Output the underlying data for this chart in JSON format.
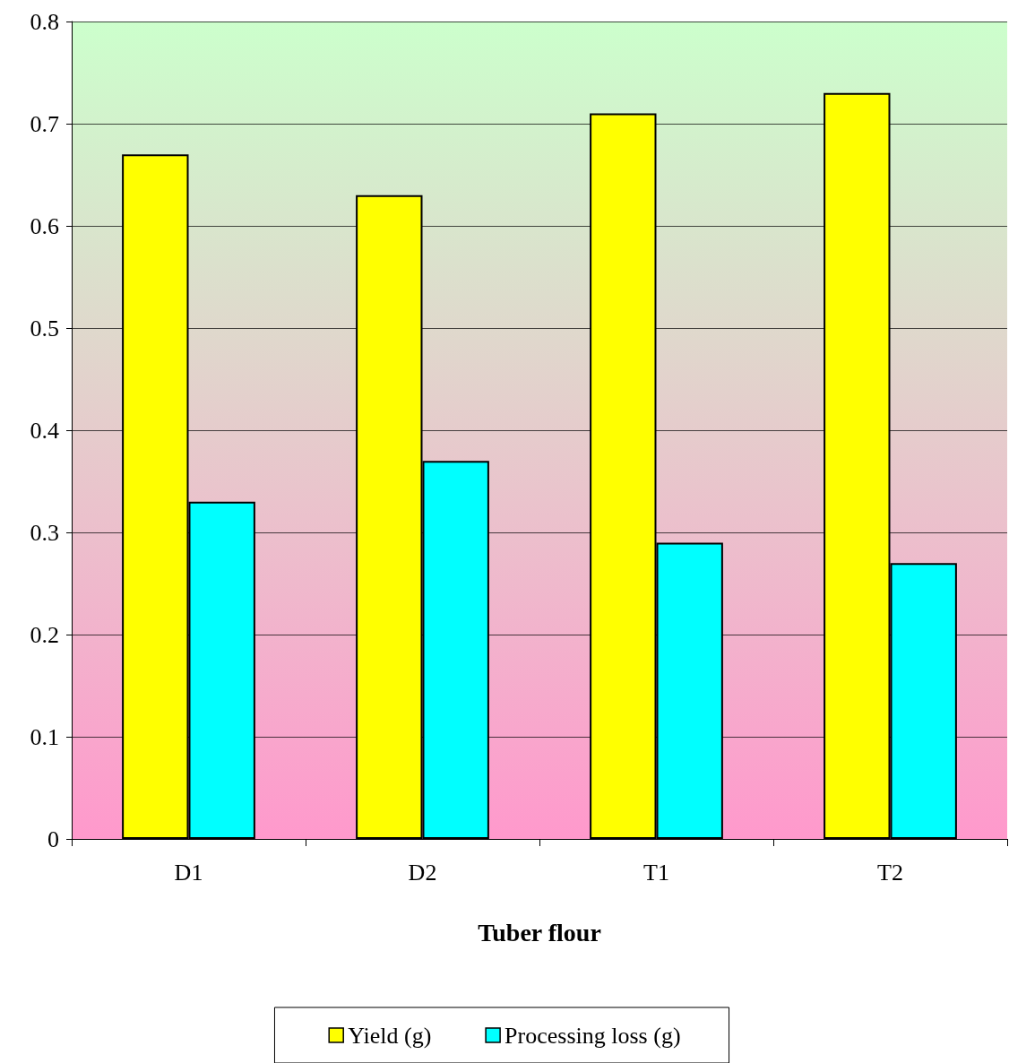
{
  "chart_data": {
    "type": "bar",
    "xlabel": "Tuber flour",
    "categories": [
      "D1",
      "D2",
      "T1",
      "T2"
    ],
    "series": [
      {
        "name": "Yield (g)",
        "color": "#ffff00",
        "values": [
          0.67,
          0.63,
          0.71,
          0.73
        ]
      },
      {
        "name": "Processing loss (g)",
        "color": "#00ffff",
        "values": [
          0.33,
          0.37,
          0.29,
          0.27
        ]
      }
    ],
    "ylim": [
      0,
      0.8
    ],
    "yticks": [
      0,
      0.1,
      0.2,
      0.3,
      0.4,
      0.5,
      0.6,
      0.7,
      0.8
    ],
    "grid": "y",
    "legend": "bottom"
  }
}
